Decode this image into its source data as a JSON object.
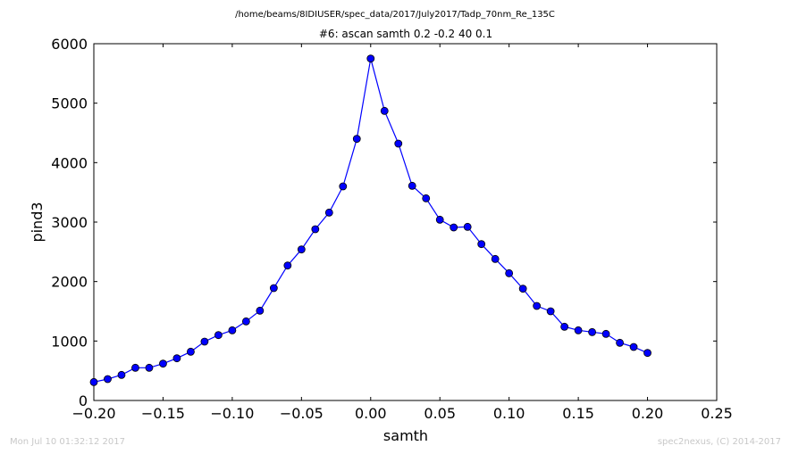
{
  "header": {
    "path": "/home/beams/8IDIUSER/spec_data/2017/July2017/Tadp_70nm_Re_135C"
  },
  "footer": {
    "timestamp": "Mon Jul 10 01:32:12 2017",
    "credit": "spec2nexus, (C) 2014-2017"
  },
  "chart_data": {
    "type": "line",
    "title": "#6: ascan  samth 0.2 -0.2  40 0.1",
    "xlabel": "samth",
    "ylabel": "pind3",
    "xlim": [
      -0.2,
      0.25
    ],
    "ylim": [
      0,
      6000
    ],
    "xticks": [
      -0.2,
      -0.15,
      -0.1,
      -0.05,
      0.0,
      0.05,
      0.1,
      0.15,
      0.2,
      0.25
    ],
    "xtick_labels": [
      "−0.20",
      "−0.15",
      "−0.10",
      "−0.05",
      "0.00",
      "0.05",
      "0.10",
      "0.15",
      "0.20",
      "0.25"
    ],
    "yticks": [
      0,
      1000,
      2000,
      3000,
      4000,
      5000,
      6000
    ],
    "ytick_labels": [
      "0",
      "1000",
      "2000",
      "3000",
      "4000",
      "5000",
      "6000"
    ],
    "grid": false,
    "line_color": "#0000ff",
    "marker_color": "#0000ff",
    "x": [
      -0.2,
      -0.19,
      -0.18,
      -0.17,
      -0.16,
      -0.15,
      -0.14,
      -0.13,
      -0.12,
      -0.11,
      -0.1,
      -0.09,
      -0.08,
      -0.07,
      -0.06,
      -0.05,
      -0.04,
      -0.03,
      -0.02,
      -0.01,
      0.0,
      0.01,
      0.02,
      0.03,
      0.04,
      0.05,
      0.06,
      0.07,
      0.08,
      0.09,
      0.1,
      0.11,
      0.12,
      0.13,
      0.14,
      0.15,
      0.16,
      0.17,
      0.18,
      0.19,
      0.2
    ],
    "y": [
      310,
      360,
      430,
      550,
      550,
      620,
      710,
      820,
      990,
      1100,
      1180,
      1330,
      1510,
      1890,
      2270,
      2540,
      2880,
      3160,
      3600,
      4400,
      5750,
      4870,
      4320,
      3610,
      3400,
      3040,
      2910,
      2920,
      2630,
      2380,
      2140,
      1880,
      1590,
      1500,
      1240,
      1180,
      1150,
      1120,
      970,
      900,
      800
    ]
  }
}
